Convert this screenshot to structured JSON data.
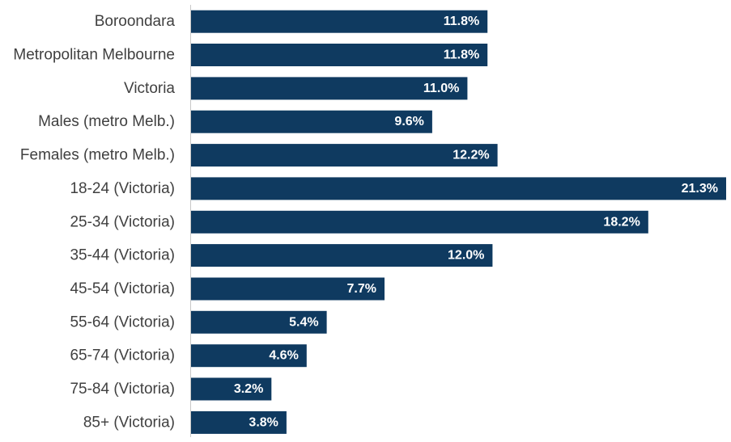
{
  "chart_data": {
    "type": "bar",
    "orientation": "horizontal",
    "categories": [
      "Boroondara",
      "Metropolitan Melbourne",
      "Victoria",
      "Males (metro Melb.)",
      "Females (metro Melb.)",
      "18-24 (Victoria)",
      "25-34 (Victoria)",
      "35-44 (Victoria)",
      "45-54 (Victoria)",
      "55-64 (Victoria)",
      "65-74 (Victoria)",
      "75-84 (Victoria)",
      "85+ (Victoria)"
    ],
    "values": [
      11.8,
      11.8,
      11.0,
      9.6,
      12.2,
      21.3,
      18.2,
      12.0,
      7.7,
      5.4,
      4.6,
      3.2,
      3.8
    ],
    "value_labels": [
      "11.8%",
      "11.8%",
      "11.0%",
      "9.6%",
      "12.2%",
      "21.3%",
      "18.2%",
      "12.0%",
      "7.7%",
      "5.4%",
      "4.6%",
      "3.2%",
      "3.8%"
    ],
    "bar_color": "#0f3a60",
    "label_color": "#ffffff",
    "xlim": [
      0,
      21.3
    ],
    "grid": false,
    "title": "",
    "xlabel": "",
    "ylabel": ""
  }
}
